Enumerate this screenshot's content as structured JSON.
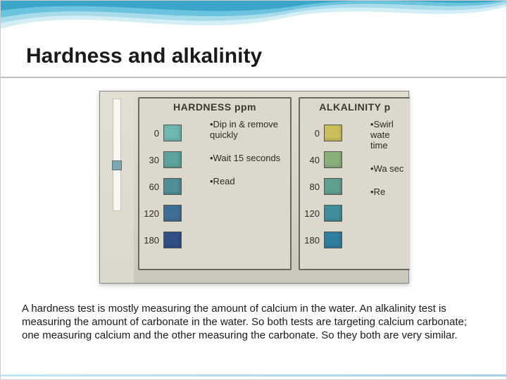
{
  "title": {
    "text": "Hardness and alkalinity",
    "fontsize": 30,
    "color": "#1a1a1a"
  },
  "wave": {
    "colors": [
      "#3aa6c9",
      "#6cc3de",
      "#a9dceb",
      "#d4eef6"
    ],
    "height": 60
  },
  "photo": {
    "strip_pad_color": "#7aa8b4",
    "hardness": {
      "header": "HARDNESS ppm",
      "header_fontsize": 14,
      "scale": [
        {
          "v": "0",
          "color": "#6fb8b2"
        },
        {
          "v": "30",
          "color": "#5da59c"
        },
        {
          "v": "60",
          "color": "#4f8f97"
        },
        {
          "v": "120",
          "color": "#3f6f97"
        },
        {
          "v": "180",
          "color": "#2f4f87"
        }
      ],
      "instructions": [
        "•Dip in & remove quickly",
        "•Wait 15 seconds",
        "•Read"
      ],
      "num_fontsize": 13,
      "instr_fontsize": 13
    },
    "alkalinity": {
      "header": "ALKALINITY p",
      "header_fontsize": 14,
      "scale": [
        {
          "v": "0",
          "color": "#cbbf5b"
        },
        {
          "v": "40",
          "color": "#8ab07a"
        },
        {
          "v": "80",
          "color": "#5fa08e"
        },
        {
          "v": "120",
          "color": "#3f8f9b"
        },
        {
          "v": "180",
          "color": "#2f7fa0"
        }
      ],
      "instructions": [
        "•Swirl wate time",
        "•Wa sec",
        "•Re"
      ],
      "num_fontsize": 13,
      "instr_fontsize": 13
    }
  },
  "caption": {
    "text": "A hardness test is mostly measuring the amount of calcium in the water. An alkalinity test is measuring the amount of carbonate in the water. So both tests are targeting calcium carbonate; one measuring calcium and the other measuring the carbonate. So they both are very similar.",
    "fontsize": 15
  }
}
